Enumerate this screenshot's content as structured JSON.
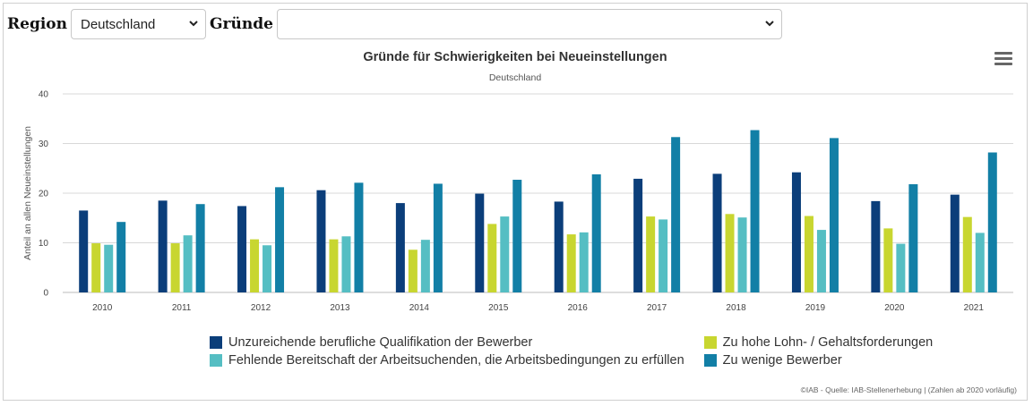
{
  "controls": {
    "region_label": "Region",
    "region_value": "Deutschland",
    "gruende_label": "Gründe",
    "gruende_value": ""
  },
  "chart_data": {
    "type": "bar",
    "title": "Gründe für Schwierigkeiten bei Neueinstellungen",
    "subtitle": "Deutschland",
    "ylabel": "Anteil an allen Neueinstellungen",
    "xlabel": "",
    "ylim": [
      0,
      40
    ],
    "yticks": [
      0,
      10,
      20,
      30,
      40
    ],
    "grid": true,
    "legend_position": "bottom",
    "categories": [
      "2010",
      "2011",
      "2012",
      "2013",
      "2014",
      "2015",
      "2016",
      "2017",
      "2018",
      "2019",
      "2020",
      "2021"
    ],
    "series": [
      {
        "name": "Unzureichende berufliche Qualifikation der Bewerber",
        "color": "#0b3e7a",
        "values": [
          16.5,
          18.5,
          17.4,
          20.6,
          18,
          19.9,
          18.3,
          22.9,
          23.9,
          24.2,
          18.4,
          19.7
        ]
      },
      {
        "name": "Zu hohe Lohn- / Gehaltsforderungen",
        "color": "#c8d630",
        "values": [
          9.9,
          9.9,
          10.7,
          10.7,
          8.6,
          13.8,
          11.7,
          15.3,
          15.8,
          15.4,
          12.9,
          15.2
        ]
      },
      {
        "name": "Fehlende Bereitschaft der Arbeitsuchenden, die Arbeitsbedingungen zu erfüllen",
        "color": "#55bec3",
        "values": [
          9.6,
          11.5,
          9.5,
          11.3,
          10.6,
          15.3,
          12.1,
          14.7,
          15.1,
          12.6,
          9.8,
          12
        ]
      },
      {
        "name": "Zu wenige Bewerber",
        "color": "#127fa6",
        "values": [
          14.2,
          17.8,
          21.2,
          22.1,
          21.9,
          22.7,
          23.8,
          31.3,
          32.7,
          31.1,
          21.8,
          28.2
        ]
      }
    ]
  },
  "credits": "©IAB - Quelle: IAB-Stellenerhebung | (Zahlen ab 2020 vorläufig)"
}
